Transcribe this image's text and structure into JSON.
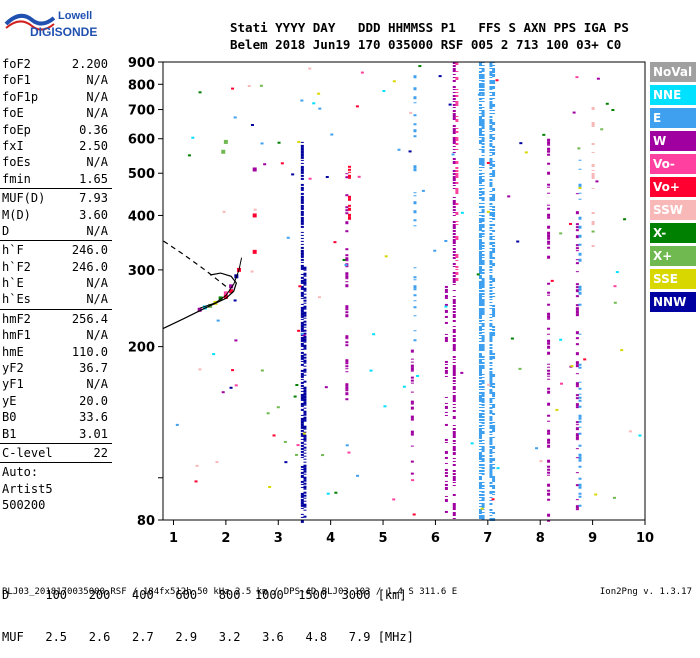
{
  "logo": {
    "line1": "Lowell",
    "line2": "DIGISONDE"
  },
  "header": {
    "labels": "Stati YYYY DAY   DDD HHMMSS P1   FFS S AXN PPS IGA PS",
    "values": "Belem 2018 Jun19 170 035000 RSF 005 2 713 100 03+ C0"
  },
  "params": [
    {
      "name": "foF2",
      "value": "2.200"
    },
    {
      "name": "foF1",
      "value": "N/A"
    },
    {
      "name": "foF1p",
      "value": "N/A"
    },
    {
      "name": "foE",
      "value": "N/A"
    },
    {
      "name": "foEp",
      "value": "0.36"
    },
    {
      "name": "fxI",
      "value": "2.50"
    },
    {
      "name": "foEs",
      "value": "N/A"
    },
    {
      "name": "fmin",
      "value": "1.65"
    },
    {
      "name": "MUF(D)",
      "value": "7.93"
    },
    {
      "name": "M(D)",
      "value": "3.60"
    },
    {
      "name": "D",
      "value": "N/A"
    },
    {
      "name": "h`F",
      "value": "246.0"
    },
    {
      "name": "h`F2",
      "value": "246.0"
    },
    {
      "name": "h`E",
      "value": "N/A"
    },
    {
      "name": "h`Es",
      "value": "N/A"
    },
    {
      "name": "hmF2",
      "value": "256.4"
    },
    {
      "name": "hmF1",
      "value": "N/A"
    },
    {
      "name": "hmE",
      "value": "110.0"
    },
    {
      "name": "yF2",
      "value": "36.7"
    },
    {
      "name": "yF1",
      "value": "N/A"
    },
    {
      "name": "yE",
      "value": "20.0"
    },
    {
      "name": "B0",
      "value": "33.6"
    },
    {
      "name": "B1",
      "value": "3.01"
    },
    {
      "name": "C-level",
      "value": "22"
    },
    {
      "name": "Auto:",
      "value": ""
    },
    {
      "name": "Artist5",
      "value": ""
    },
    {
      "name": "500200",
      "value": ""
    }
  ],
  "legend": [
    {
      "label": "NoVal",
      "color": "#a0a0a0"
    },
    {
      "label": "NNE",
      "color": "#00e0ff"
    },
    {
      "label": "E",
      "color": "#40a0f0"
    },
    {
      "label": "W",
      "color": "#a000a0"
    },
    {
      "label": "Vo-",
      "color": "#ff40a0"
    },
    {
      "label": "Vo+",
      "color": "#ff0030"
    },
    {
      "label": "SSW",
      "color": "#f8b8b8"
    },
    {
      "label": "X-",
      "color": "#008000"
    },
    {
      "label": "X+",
      "color": "#70b850"
    },
    {
      "label": "SSE",
      "color": "#d8d800"
    },
    {
      "label": "NNW",
      "color": "#0000a0"
    }
  ],
  "chart_data": {
    "type": "scatter",
    "xlim": [
      0.8,
      10.0
    ],
    "ylim": [
      80,
      900
    ],
    "x_ticks": [
      1,
      2,
      3,
      4,
      5,
      6,
      7,
      8,
      9,
      10
    ],
    "y_ticks": [
      80,
      100,
      200,
      300,
      400,
      500,
      600,
      700,
      800,
      900
    ],
    "y_tick_labels": [
      80,
      200,
      300,
      400,
      500,
      600,
      700,
      800,
      900
    ],
    "y_scale": "log",
    "grid": false,
    "legend_position": "right",
    "trace_points": [
      {
        "x": 1.5,
        "y": 243,
        "c": "#a000a0"
      },
      {
        "x": 1.6,
        "y": 246,
        "c": "#00e0ff"
      },
      {
        "x": 1.7,
        "y": 248,
        "c": "#70b850"
      },
      {
        "x": 1.8,
        "y": 252,
        "c": "#d8d800"
      },
      {
        "x": 1.9,
        "y": 258,
        "c": "#008000"
      },
      {
        "x": 2.0,
        "y": 265,
        "c": "#ff40a0"
      },
      {
        "x": 2.1,
        "y": 275,
        "c": "#a000a0"
      },
      {
        "x": 2.2,
        "y": 290,
        "c": "#0000a0"
      },
      {
        "x": 2.25,
        "y": 300,
        "c": "#ff0030"
      },
      {
        "x": 2.0,
        "y": 260,
        "c": "#ff0030"
      },
      {
        "x": 2.1,
        "y": 268,
        "c": "#ff0030"
      },
      {
        "x": 1.95,
        "y": 560,
        "c": "#70b850"
      },
      {
        "x": 2.0,
        "y": 590,
        "c": "#70b850"
      },
      {
        "x": 2.55,
        "y": 330,
        "c": "#ff0030"
      },
      {
        "x": 2.55,
        "y": 400,
        "c": "#ff0030"
      },
      {
        "x": 2.55,
        "y": 510,
        "c": "#a000a0"
      }
    ],
    "columns": [
      {
        "x": 3.45,
        "c": "#0000a0",
        "y1": 80,
        "y2": 590,
        "density": 0.9
      },
      {
        "x": 3.5,
        "c": "#0000a0",
        "y1": 80,
        "y2": 310,
        "density": 0.9
      },
      {
        "x": 4.3,
        "c": "#a000a0",
        "y1": 150,
        "y2": 500,
        "density": 0.45
      },
      {
        "x": 4.35,
        "c": "#ff0030",
        "y1": 380,
        "y2": 520,
        "density": 0.5
      },
      {
        "x": 5.55,
        "c": "#a000a0",
        "y1": 100,
        "y2": 200,
        "density": 0.6
      },
      {
        "x": 5.6,
        "c": "#40a0f0",
        "y1": 200,
        "y2": 880,
        "density": 0.3
      },
      {
        "x": 6.2,
        "c": "#a000a0",
        "y1": 80,
        "y2": 280,
        "density": 0.4
      },
      {
        "x": 6.35,
        "c": "#a000a0",
        "y1": 80,
        "y2": 900,
        "density": 0.85
      },
      {
        "x": 6.4,
        "c": "#ff40a0",
        "y1": 280,
        "y2": 900,
        "density": 0.5
      },
      {
        "x": 6.85,
        "c": "#40a0f0",
        "y1": 80,
        "y2": 900,
        "density": 0.95
      },
      {
        "x": 6.9,
        "c": "#40a0f0",
        "y1": 80,
        "y2": 900,
        "density": 0.9
      },
      {
        "x": 7.05,
        "c": "#40a0f0",
        "y1": 80,
        "y2": 900,
        "density": 0.9
      },
      {
        "x": 7.1,
        "c": "#40a0f0",
        "y1": 80,
        "y2": 900,
        "density": 0.6
      },
      {
        "x": 8.15,
        "c": "#a000a0",
        "y1": 80,
        "y2": 600,
        "density": 0.5
      },
      {
        "x": 8.7,
        "c": "#a000a0",
        "y1": 80,
        "y2": 450,
        "density": 0.45
      },
      {
        "x": 8.75,
        "c": "#40a0f0",
        "y1": 80,
        "y2": 600,
        "density": 0.3
      },
      {
        "x": 9.0,
        "c": "#f8b8b8",
        "y1": 300,
        "y2": 900,
        "density": 0.2
      }
    ]
  },
  "distance_row": {
    "label": "D",
    "values": [
      "100",
      "200",
      "400",
      "600",
      "800",
      "1000",
      "1500",
      "3000"
    ],
    "unit": "[km]"
  },
  "muf_row": {
    "label": "MUF",
    "values": [
      "2.5",
      "2.6",
      "2.7",
      "2.9",
      "3.2",
      "3.6",
      "4.8",
      "7.9"
    ],
    "unit": "[MHz]"
  },
  "footer": "BLJ03_2018170035000.RSF / 184fx512h 50 kHz 2.5 km / DPS-4D BLJ03 103 / 1.4 S 311.6 E",
  "version": "Ion2Png v. 1.3.17"
}
